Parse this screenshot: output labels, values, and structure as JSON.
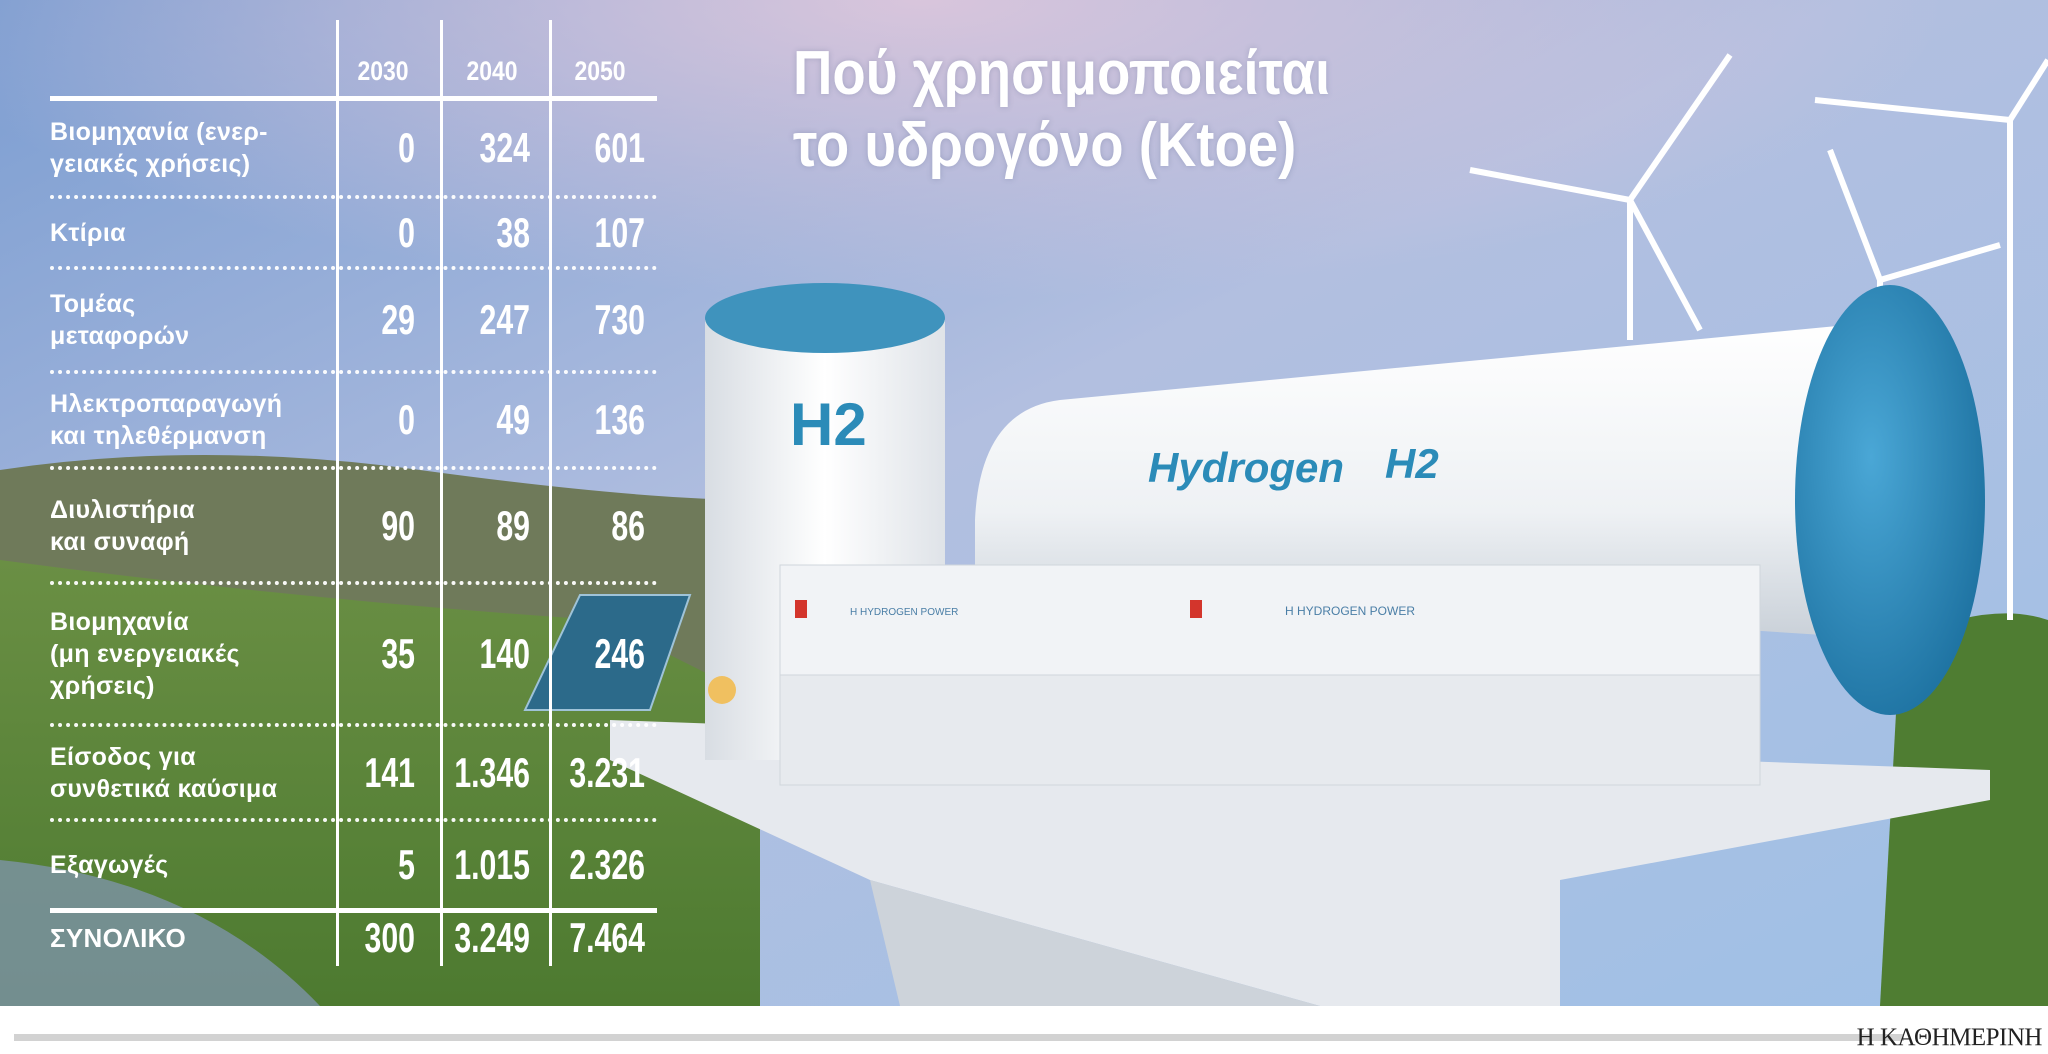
{
  "title": "Πού χρησιμοποιείται\nτο υδρογόνο (Ktoe)",
  "photo_lettering": {
    "tank_small": "H2",
    "tank_large": "Hydrogen",
    "tank_large_symbol": "H2",
    "panel_1": "H HYDROGEN POWER",
    "panel_2": "H HYDROGEN POWER"
  },
  "logo": "Η ΚΑΘΗΜΕΡΙΝΗ",
  "colors": {
    "text": "#ffffff",
    "sky": "#8fb0dc",
    "grass": "#5f8a3a",
    "tank_cap": "#2f8fc0"
  },
  "chart_data": {
    "type": "table",
    "title": "Πού χρησιμοποιείται το υδρογόνο (Ktoe)",
    "columns": [
      "2030",
      "2040",
      "2050"
    ],
    "rows": [
      {
        "label": "Βιομηχανία (ενερ-\nγειακές χρήσεις)",
        "values": [
          "0",
          "324",
          "601"
        ]
      },
      {
        "label": "Κτίρια",
        "values": [
          "0",
          "38",
          "107"
        ]
      },
      {
        "label": "Τομέας\nμεταφορών",
        "values": [
          "29",
          "247",
          "730"
        ]
      },
      {
        "label": "Ηλεκτροπαραγωγή\nκαι τηλεθέρμανση",
        "values": [
          "0",
          "49",
          "136"
        ]
      },
      {
        "label": "Διυλιστήρια\nκαι συναφή",
        "values": [
          "90",
          "89",
          "86"
        ]
      },
      {
        "label": "Βιομηχανία\n(μη ενεργειακές\nχρήσεις)",
        "values": [
          "35",
          "140",
          "246"
        ]
      },
      {
        "label": "Είσοδος για\nσυνθετικά καύσιμα",
        "values": [
          "141",
          "1.346",
          "3.231"
        ]
      },
      {
        "label": "Εξαγωγές",
        "values": [
          "5",
          "1.015",
          "2.326"
        ]
      }
    ],
    "total": {
      "label": "ΣΥΝΟΛΙΚΟ",
      "values": [
        "300",
        "3.249",
        "7.464"
      ]
    }
  }
}
